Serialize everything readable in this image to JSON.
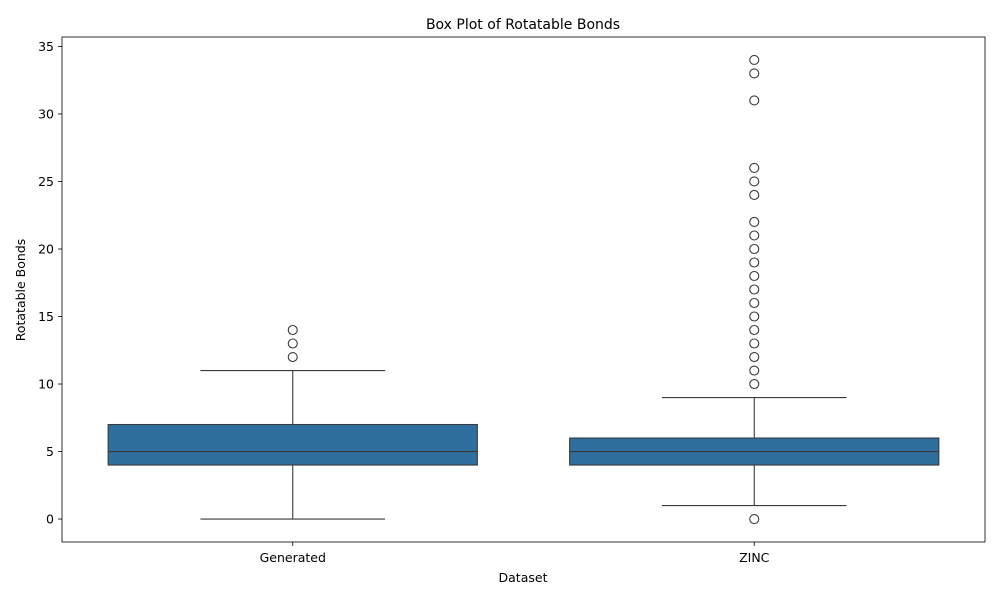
{
  "chart_data": {
    "type": "box",
    "title": "Box Plot of Rotatable Bonds",
    "xlabel": "Dataset",
    "ylabel": "Rotatable Bonds",
    "ylim": [
      -1.7,
      35.7
    ],
    "yticks": [
      0,
      5,
      10,
      15,
      20,
      25,
      30,
      35
    ],
    "grid": false,
    "legend": "none",
    "categories": [
      "Generated",
      "ZINC"
    ],
    "colors": {
      "box": "#2f6f9f",
      "line": "#3a3a3a"
    },
    "boxes": [
      {
        "category": "Generated",
        "whisker_low": 0,
        "q1": 4,
        "median": 5,
        "q3": 7,
        "whisker_high": 11,
        "outliers": [
          12,
          13,
          14
        ]
      },
      {
        "category": "ZINC",
        "whisker_low": 1,
        "q1": 4,
        "median": 5,
        "q3": 6,
        "whisker_high": 9,
        "outliers": [
          0,
          10,
          11,
          12,
          13,
          14,
          15,
          16,
          17,
          18,
          19,
          20,
          21,
          22,
          24,
          25,
          26,
          31,
          33,
          34
        ]
      }
    ]
  }
}
